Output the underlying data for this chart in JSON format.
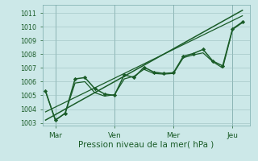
{
  "bg_color": "#cce8e8",
  "grid_color": "#9dbfbf",
  "line_color": "#1a5c28",
  "marker_color": "#1a5c28",
  "xlabel": "Pression niveau de la mer( hPa )",
  "ylim": [
    1002.8,
    1011.6
  ],
  "xlim": [
    -0.15,
    10.4
  ],
  "yticks": [
    1003,
    1004,
    1005,
    1006,
    1007,
    1008,
    1009,
    1010,
    1011
  ],
  "x_tick_labels": [
    "Mar",
    "Ven",
    "Mer",
    "Jeu"
  ],
  "x_tick_positions": [
    0.5,
    3.5,
    6.5,
    9.5
  ],
  "series": [
    {
      "x": [
        0,
        0.5,
        1.0,
        1.5,
        2.0,
        2.5,
        3.0,
        3.5,
        4.0,
        4.5,
        5.0,
        5.5,
        6.0,
        6.5,
        7.0,
        7.5,
        8.0,
        8.5,
        9.0,
        9.5,
        10.0
      ],
      "y": [
        1005.3,
        1003.2,
        1003.7,
        1006.2,
        1006.3,
        1005.5,
        1005.1,
        1005.0,
        1006.5,
        1006.3,
        1007.05,
        1006.7,
        1006.6,
        1006.65,
        1007.85,
        1008.05,
        1008.35,
        1007.5,
        1007.15,
        1009.85,
        1010.35
      ],
      "lw": 1.1,
      "marker": "D",
      "ms": 2.2,
      "zorder": 4
    },
    {
      "x": [
        0,
        0.5,
        1.0,
        1.5,
        2.0,
        2.5,
        3.0,
        3.5,
        4.0,
        4.5,
        5.0,
        5.5,
        6.0,
        6.5,
        7.0,
        7.5,
        8.0,
        8.5,
        9.0,
        9.5,
        10.0
      ],
      "y": [
        1005.3,
        1003.2,
        1003.7,
        1005.9,
        1006.0,
        1005.2,
        1004.95,
        1005.05,
        1006.2,
        1006.4,
        1006.9,
        1006.6,
        1006.55,
        1006.6,
        1007.75,
        1007.95,
        1008.1,
        1007.45,
        1007.0,
        1009.8,
        1010.3
      ],
      "lw": 0.9,
      "marker": null,
      "ms": 0,
      "zorder": 3
    },
    {
      "x": [
        0,
        10.0
      ],
      "y": [
        1003.2,
        1011.2
      ],
      "lw": 1.1,
      "marker": null,
      "ms": 0,
      "zorder": 2
    },
    {
      "x": [
        0,
        10.0
      ],
      "y": [
        1003.8,
        1010.8
      ],
      "lw": 0.9,
      "marker": null,
      "ms": 0,
      "zorder": 1
    }
  ]
}
